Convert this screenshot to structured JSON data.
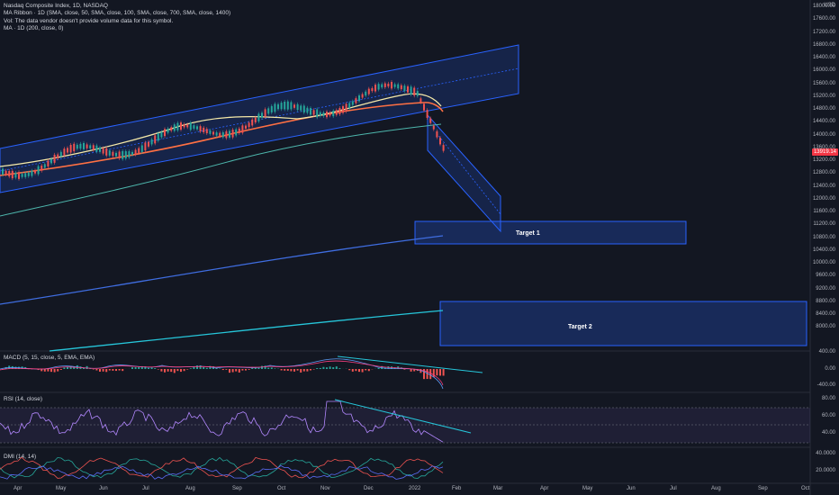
{
  "legend": {
    "line1": "Nasdaq Composite Index, 1D, NASDAQ",
    "line2": "MA Ribbon · 1D (SMA, close, 50, SMA, close, 100, SMA, close, 700, SMA, close, 1400)",
    "line3": "Vol: The data vendor doesn't provide volume data for this symbol.",
    "line4": "MA · 1D (200, close, 0)"
  },
  "currency": "USD",
  "last_price": "13919.14",
  "price_axis": [
    "18000.00",
    "17600.00",
    "17200.00",
    "16800.00",
    "16400.00",
    "16000.00",
    "15600.00",
    "15200.00",
    "14800.00",
    "14400.00",
    "14000.00",
    "13600.00",
    "13200.00",
    "12800.00",
    "12400.00",
    "12000.00",
    "11600.00",
    "11200.00",
    "10800.00",
    "10400.00",
    "10000.00",
    "9600.00",
    "9200.00",
    "8800.00",
    "8400.00",
    "8000.00"
  ],
  "macd": {
    "label": "MACD (5, 15, close, 5, EMA, EMA)",
    "axis": [
      "400.00",
      "0.00",
      "-400.00"
    ]
  },
  "rsi": {
    "label": "RSI (14, close)",
    "axis": [
      "80.00",
      "60.00",
      "40.00"
    ]
  },
  "dmi": {
    "label": "DMI (14, 14)",
    "axis": [
      "40.0000",
      "20.0000"
    ]
  },
  "targets": [
    "Target 1",
    "Target 2"
  ],
  "x_axis": [
    "Apr",
    "May",
    "Jun",
    "Jul",
    "Aug",
    "Sep",
    "Oct",
    "Nov",
    "Dec",
    "2022",
    "Feb",
    "Mar",
    "Apr",
    "May",
    "Jun",
    "Jul",
    "Aug",
    "Sep",
    "Oct"
  ],
  "colors": {
    "bg": "#131722",
    "up": "#26a69a",
    "down": "#ef5350",
    "channel": "#2962ff",
    "ma50": "#f5e9a8",
    "ma100": "#ff7043",
    "ma200": "#4db6ac",
    "long1": "#3f6de0",
    "long2": "#26c6da",
    "rsi": "#b388ff"
  }
}
